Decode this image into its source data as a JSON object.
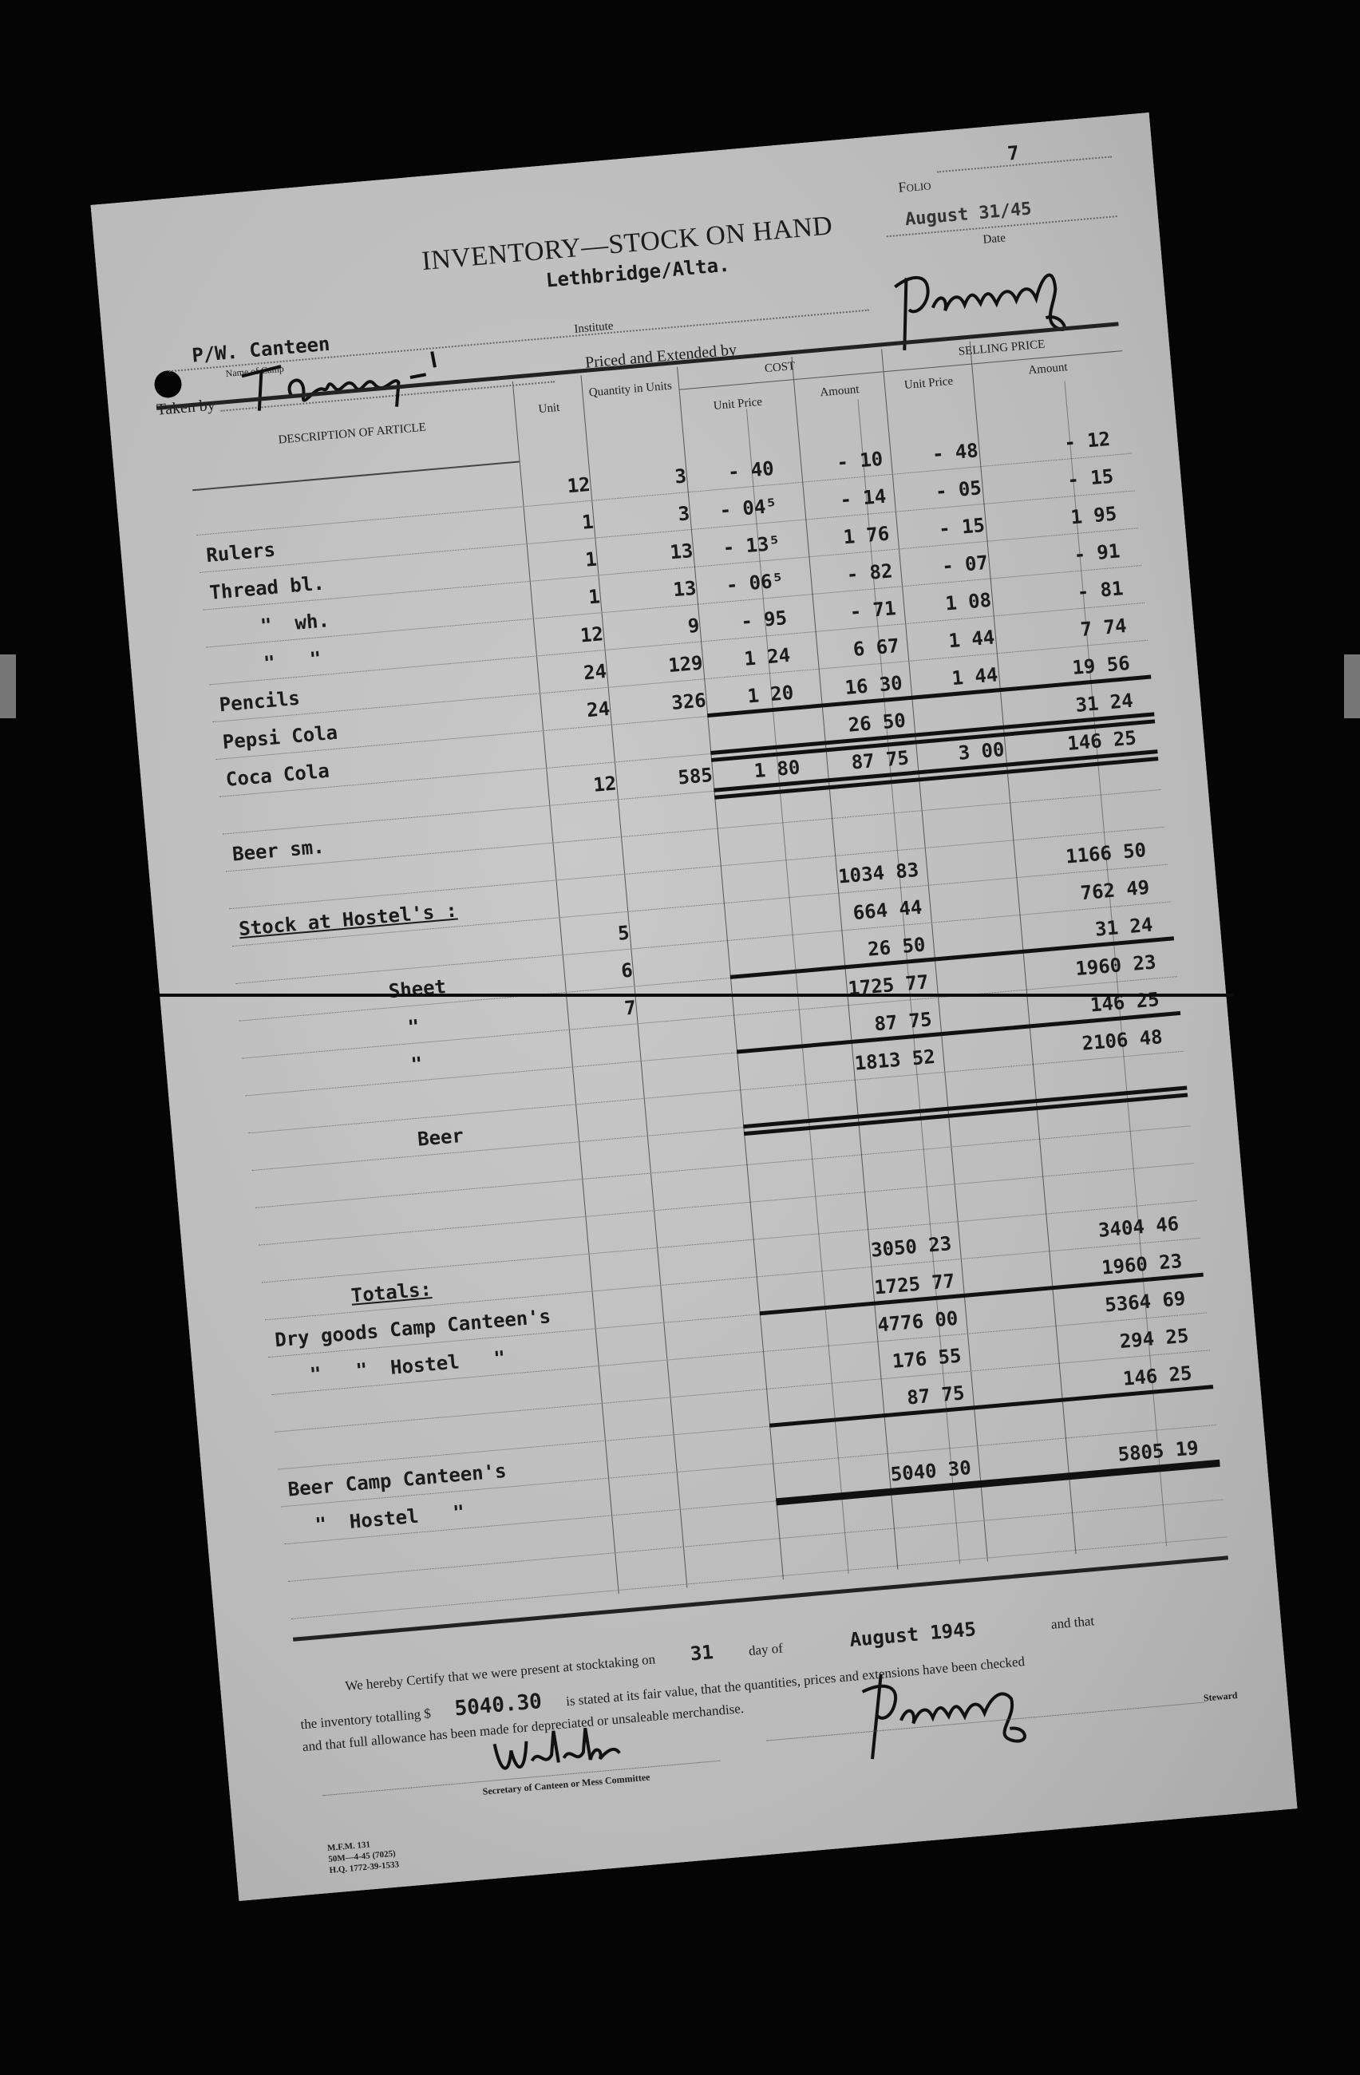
{
  "header": {
    "folio_label": "Folio",
    "folio_number": "7",
    "title": "INVENTORY—STOCK ON HAND",
    "location": "Lethbridge/Alta.",
    "date_value": "August 31/45",
    "date_label": "Date",
    "camp_value": "P/W. Canteen",
    "institute_label": "Institute",
    "camp_label": "Name of Camp",
    "taken_by_label": "Taken by",
    "priced_label": "Priced and Extended by"
  },
  "columns": {
    "description": "DESCRIPTION OF ARTICLE",
    "unit": "Unit",
    "quantity": "Quantity in Units",
    "cost": "COST",
    "cost_unit_price": "Unit Price",
    "cost_amount": "Amount",
    "selling": "SELLING PRICE",
    "sell_unit_price": "Unit Price",
    "sell_amount": "Amount"
  },
  "rows": [
    {
      "desc": "",
      "unit": "12",
      "qty": "3",
      "cup": "- 40",
      "camt": "- 10",
      "sup": "- 48",
      "samt": "- 12"
    },
    {
      "desc": "Rulers",
      "unit": "1",
      "qty": "3",
      "cup": "- 04⁵",
      "camt": "- 14",
      "sup": "- 05",
      "samt": "- 15"
    },
    {
      "desc": "Thread bl.",
      "unit": "1",
      "qty": "13",
      "cup": "- 13⁵",
      "camt": "1 76",
      "sup": "- 15",
      "samt": "1 95"
    },
    {
      "desc": "\"  wh.",
      "unit": "1",
      "qty": "13",
      "cup": "- 06⁵",
      "camt": "- 82",
      "sup": "- 07",
      "samt": "- 91"
    },
    {
      "desc": "\"   \"",
      "unit": "12",
      "qty": "9",
      "cup": "- 95",
      "camt": "- 71",
      "sup": "1 08",
      "samt": "- 81"
    },
    {
      "desc": "Pencils",
      "unit": "24",
      "qty": "129",
      "cup": "1 24",
      "camt": "6 67",
      "sup": "1 44",
      "samt": "7 74"
    },
    {
      "desc": "Pepsi Cola",
      "unit": "24",
      "qty": "326",
      "cup": "1 20",
      "camt": "16 30",
      "sup": "1 44",
      "samt": "19 56"
    },
    {
      "desc": "Coca Cola",
      "unit": "",
      "qty": "",
      "cup": "",
      "camt": "26 50",
      "sup": "",
      "samt": "31 24"
    },
    {
      "desc": "",
      "unit": "12",
      "qty": "585",
      "cup": "1 80",
      "camt": "87 75",
      "sup": "3 00",
      "samt": "146 25"
    },
    {
      "desc": "Beer sm.",
      "unit": "",
      "qty": "",
      "cup": "",
      "camt": "",
      "sup": "",
      "samt": ""
    },
    {
      "desc": "",
      "unit": "",
      "qty": "",
      "cup": "",
      "camt": "",
      "sup": "",
      "samt": ""
    },
    {
      "desc": "Stock at Hostel's :",
      "unit": "",
      "qty": "",
      "cup": "",
      "camt": "1034 83",
      "sup": "",
      "samt": "1166 50"
    },
    {
      "desc": "",
      "unit": "5",
      "qty": "",
      "cup": "",
      "camt": "664 44",
      "sup": "",
      "samt": "762 49"
    },
    {
      "desc": "Sheet",
      "unit": "6",
      "qty": "",
      "cup": "",
      "camt": "26 50",
      "sup": "",
      "samt": "31 24"
    },
    {
      "desc": "\"",
      "unit": "7",
      "qty": "",
      "cup": "",
      "camt": "1725 77",
      "sup": "",
      "samt": "1960 23"
    },
    {
      "desc": "\"",
      "unit": "",
      "qty": "",
      "cup": "",
      "camt": "87 75",
      "sup": "",
      "samt": "146 25"
    },
    {
      "desc": "",
      "unit": "",
      "qty": "",
      "cup": "",
      "camt": "1813 52",
      "sup": "",
      "samt": "2106 48"
    },
    {
      "desc": "Beer",
      "unit": "",
      "qty": "",
      "cup": "",
      "camt": "",
      "sup": "",
      "samt": ""
    },
    {
      "desc": "",
      "unit": "",
      "qty": "",
      "cup": "",
      "camt": "",
      "sup": "",
      "samt": ""
    },
    {
      "desc": "",
      "unit": "",
      "qty": "",
      "cup": "",
      "camt": "",
      "sup": "",
      "samt": ""
    },
    {
      "desc": "",
      "unit": "",
      "qty": "",
      "cup": "",
      "camt": "",
      "sup": "",
      "samt": ""
    },
    {
      "desc": "Totals:",
      "unit": "",
      "qty": "",
      "cup": "",
      "camt": "3050 23",
      "sup": "",
      "samt": "3404 46"
    },
    {
      "desc": "Dry goods Camp Canteen's",
      "unit": "",
      "qty": "",
      "cup": "",
      "camt": "1725 77",
      "sup": "",
      "samt": "1960 23"
    },
    {
      "desc": "\"   \"  Hostel   \"",
      "unit": "",
      "qty": "",
      "cup": "",
      "camt": "4776 00",
      "sup": "",
      "samt": "5364 69"
    },
    {
      "desc": "",
      "unit": "",
      "qty": "",
      "cup": "",
      "camt": "176 55",
      "sup": "",
      "samt": "294 25"
    },
    {
      "desc": "",
      "unit": "",
      "qty": "",
      "cup": "",
      "camt": "87 75",
      "sup": "",
      "samt": "146 25"
    },
    {
      "desc": "Beer Camp Canteen's",
      "unit": "",
      "qty": "",
      "cup": "",
      "camt": "",
      "sup": "",
      "samt": ""
    },
    {
      "desc": "\"  Hostel   \"",
      "unit": "",
      "qty": "",
      "cup": "",
      "camt": "5040 30",
      "sup": "",
      "samt": "5805 19"
    },
    {
      "desc": "",
      "unit": "",
      "qty": "",
      "cup": "",
      "camt": "",
      "sup": "",
      "samt": ""
    },
    {
      "desc": "",
      "unit": "",
      "qty": "",
      "cup": "",
      "camt": "",
      "sup": "",
      "samt": ""
    }
  ],
  "certification": {
    "line1_a": "We hereby Certify that we were present at stocktaking on",
    "day": "31",
    "line1_b": "day of",
    "month_year": "August 1945",
    "line1_c": "and that",
    "line2_a": "the inventory totalling $",
    "total": "5040.30",
    "line2_b": "is stated at its fair value, that the quantities, prices and extensions have been checked",
    "line3": "and that full allowance has been made for depreciated or unsaleable merchandise.",
    "secretary_label": "Secretary of Canteen or Mess Committee",
    "steward_label": "Steward"
  },
  "form_codes": [
    "M.F.M. 131",
    "50M—4-45 (7025)",
    "H.Q. 1772-39-1533"
  ]
}
